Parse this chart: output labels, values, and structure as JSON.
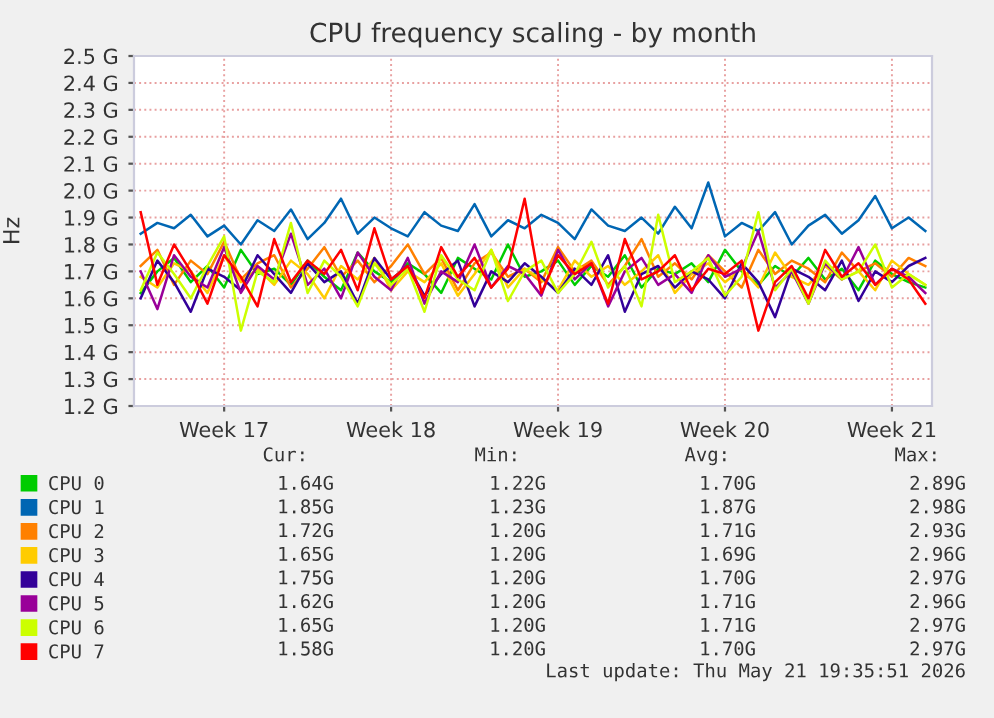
{
  "chart_data": {
    "type": "line",
    "title": "CPU frequency scaling - by month",
    "ylabel": "Hz",
    "categories": [
      null,
      null,
      null,
      null,
      null,
      "Week 17",
      null,
      null,
      null,
      null,
      null,
      null,
      null,
      null,
      null,
      "Week 18",
      null,
      null,
      null,
      null,
      null,
      null,
      null,
      null,
      null,
      "Week 19",
      null,
      null,
      null,
      null,
      null,
      null,
      null,
      null,
      null,
      "Week 20",
      null,
      null,
      null,
      null,
      null,
      null,
      null,
      null,
      null,
      "Week 21",
      null,
      null
    ],
    "series": [
      {
        "name": "CPU 0",
        "color": "#00cc00",
        "values": [
          1.62,
          1.7,
          1.75,
          1.66,
          1.72,
          1.64,
          1.78,
          1.69,
          1.71,
          1.65,
          1.74,
          1.68,
          1.63,
          1.77,
          1.7,
          1.66,
          1.73,
          1.69,
          1.62,
          1.75,
          1.71,
          1.67,
          1.8,
          1.68,
          1.7,
          1.74,
          1.65,
          1.72,
          1.68,
          1.76,
          1.64,
          1.71,
          1.69,
          1.73,
          1.66,
          1.78,
          1.7,
          1.65,
          1.72,
          1.68,
          1.75,
          1.67,
          1.71,
          1.63,
          1.74,
          1.69,
          1.66,
          1.64
        ]
      },
      {
        "name": "CPU 1",
        "color": "#0066b3",
        "values": [
          1.84,
          1.88,
          1.86,
          1.91,
          1.83,
          1.87,
          1.8,
          1.89,
          1.85,
          1.93,
          1.82,
          1.88,
          1.97,
          1.84,
          1.9,
          1.86,
          1.83,
          1.92,
          1.87,
          1.85,
          1.95,
          1.83,
          1.89,
          1.86,
          1.91,
          1.88,
          1.82,
          1.93,
          1.87,
          1.85,
          1.9,
          1.84,
          1.94,
          1.86,
          2.03,
          1.83,
          1.88,
          1.85,
          1.92,
          1.8,
          1.87,
          1.91,
          1.84,
          1.89,
          1.98,
          1.86,
          1.9,
          1.85
        ]
      },
      {
        "name": "CPU 2",
        "color": "#ff8000",
        "values": [
          1.72,
          1.78,
          1.65,
          1.74,
          1.69,
          1.81,
          1.67,
          1.73,
          1.76,
          1.64,
          1.71,
          1.79,
          1.68,
          1.74,
          1.66,
          1.72,
          1.8,
          1.69,
          1.75,
          1.63,
          1.73,
          1.77,
          1.68,
          1.71,
          1.66,
          1.79,
          1.7,
          1.74,
          1.65,
          1.72,
          1.82,
          1.68,
          1.73,
          1.67,
          1.76,
          1.7,
          1.64,
          1.78,
          1.69,
          1.74,
          1.71,
          1.66,
          1.77,
          1.7,
          1.73,
          1.68,
          1.75,
          1.72
        ]
      },
      {
        "name": "CPU 3",
        "color": "#ffcc00",
        "values": [
          1.68,
          1.64,
          1.73,
          1.7,
          1.62,
          1.76,
          1.66,
          1.71,
          1.65,
          1.74,
          1.69,
          1.6,
          1.72,
          1.67,
          1.75,
          1.63,
          1.7,
          1.66,
          1.73,
          1.61,
          1.69,
          1.78,
          1.64,
          1.71,
          1.67,
          1.63,
          1.74,
          1.68,
          1.72,
          1.65,
          1.7,
          1.76,
          1.62,
          1.69,
          1.73,
          1.66,
          1.71,
          1.64,
          1.77,
          1.68,
          1.65,
          1.72,
          1.67,
          1.7,
          1.63,
          1.74,
          1.69,
          1.65
        ]
      },
      {
        "name": "CPU 4",
        "color": "#330099",
        "values": [
          1.6,
          1.74,
          1.66,
          1.55,
          1.71,
          1.68,
          1.63,
          1.76,
          1.69,
          1.62,
          1.73,
          1.66,
          1.7,
          1.58,
          1.75,
          1.67,
          1.72,
          1.61,
          1.69,
          1.74,
          1.57,
          1.7,
          1.66,
          1.73,
          1.68,
          1.62,
          1.71,
          1.65,
          1.76,
          1.55,
          1.69,
          1.72,
          1.64,
          1.7,
          1.67,
          1.6,
          1.73,
          1.66,
          1.53,
          1.71,
          1.68,
          1.63,
          1.74,
          1.59,
          1.7,
          1.66,
          1.72,
          1.75
        ]
      },
      {
        "name": "CPU 5",
        "color": "#990099",
        "values": [
          1.7,
          1.56,
          1.76,
          1.68,
          1.64,
          1.79,
          1.62,
          1.72,
          1.67,
          1.84,
          1.65,
          1.71,
          1.6,
          1.77,
          1.68,
          1.63,
          1.75,
          1.58,
          1.7,
          1.66,
          1.8,
          1.64,
          1.72,
          1.69,
          1.61,
          1.78,
          1.67,
          1.73,
          1.57,
          1.7,
          1.75,
          1.65,
          1.69,
          1.62,
          1.76,
          1.68,
          1.71,
          1.85,
          1.64,
          1.7,
          1.58,
          1.73,
          1.67,
          1.79,
          1.65,
          1.71,
          1.68,
          1.62
        ]
      },
      {
        "name": "CPU 6",
        "color": "#ccff00",
        "values": [
          1.63,
          1.77,
          1.69,
          1.6,
          1.72,
          1.83,
          1.48,
          1.7,
          1.66,
          1.88,
          1.62,
          1.74,
          1.68,
          1.57,
          1.73,
          1.65,
          1.71,
          1.55,
          1.76,
          1.67,
          1.63,
          1.78,
          1.59,
          1.7,
          1.74,
          1.62,
          1.69,
          1.81,
          1.64,
          1.72,
          1.57,
          1.91,
          1.66,
          1.7,
          1.75,
          1.61,
          1.68,
          1.92,
          1.63,
          1.71,
          1.58,
          1.74,
          1.67,
          1.7,
          1.8,
          1.64,
          1.69,
          1.65
        ]
      },
      {
        "name": "CPU 7",
        "color": "#ff0000",
        "values": [
          1.92,
          1.65,
          1.8,
          1.7,
          1.58,
          1.76,
          1.68,
          1.57,
          1.82,
          1.66,
          1.74,
          1.69,
          1.78,
          1.63,
          1.86,
          1.67,
          1.72,
          1.6,
          1.79,
          1.68,
          1.75,
          1.64,
          1.71,
          1.97,
          1.62,
          1.76,
          1.69,
          1.73,
          1.58,
          1.82,
          1.67,
          1.7,
          1.76,
          1.63,
          1.71,
          1.69,
          1.74,
          1.48,
          1.66,
          1.72,
          1.6,
          1.78,
          1.68,
          1.73,
          1.65,
          1.71,
          1.67,
          1.58
        ]
      }
    ],
    "ylim": [
      1.2,
      2.5
    ],
    "yticks": [
      {
        "value": 1.2,
        "label": "1.2 G"
      },
      {
        "value": 1.3,
        "label": "1.3 G"
      },
      {
        "value": 1.4,
        "label": "1.4 G"
      },
      {
        "value": 1.5,
        "label": "1.5 G"
      },
      {
        "value": 1.6,
        "label": "1.6 G"
      },
      {
        "value": 1.7,
        "label": "1.7 G"
      },
      {
        "value": 1.8,
        "label": "1.8 G"
      },
      {
        "value": 1.9,
        "label": "1.9 G"
      },
      {
        "value": 2.0,
        "label": "2.0 G"
      },
      {
        "value": 2.1,
        "label": "2.1 G"
      },
      {
        "value": 2.2,
        "label": "2.2 G"
      },
      {
        "value": 2.3,
        "label": "2.3 G"
      },
      {
        "value": 2.4,
        "label": "2.4 G"
      },
      {
        "value": 2.5,
        "label": "2.5 G"
      }
    ],
    "grid": true,
    "legend": "bottom",
    "marker": "none",
    "line_style": "solid",
    "annotations": [
      "Cur:",
      "Min:",
      "Avg:",
      "Max:",
      "1.64G",
      "1.22G",
      "1.70G",
      "2.89G",
      "1.85G",
      "1.23G",
      "1.87G",
      "2.98G",
      "1.72G",
      "1.20G",
      "1.71G",
      "2.93G",
      "1.65G",
      "1.20G",
      "1.69G",
      "2.96G",
      "1.75G",
      "1.20G",
      "1.70G",
      "2.97G",
      "1.62G",
      "1.20G",
      "1.71G",
      "2.96G",
      "1.65G",
      "1.20G",
      "1.71G",
      "2.97G",
      "1.58G",
      "1.20G",
      "1.70G",
      "2.97G",
      "Last update: Thu May 21 19:35:51 2026"
    ]
  }
}
